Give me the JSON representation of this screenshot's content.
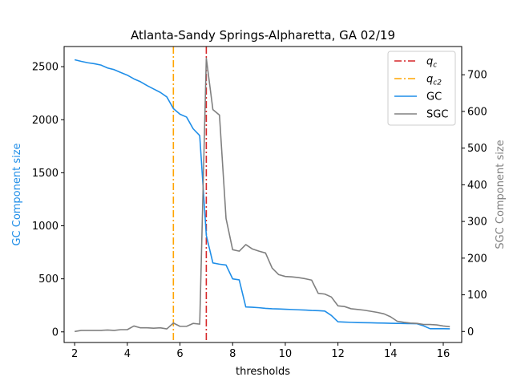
{
  "chart_data": {
    "type": "line",
    "title": "Atlanta-Sandy Springs-Alpharetta, GA 02/19",
    "xlabel": "thresholds",
    "ylabel_left": "GC Component size",
    "ylabel_right": "SGC Component size",
    "xlim": [
      1.6,
      16.7
    ],
    "ylim_left": [
      -100,
      2690
    ],
    "ylim_right": [
      -30,
      777
    ],
    "xticks": [
      2,
      4,
      6,
      8,
      10,
      12,
      14,
      16
    ],
    "yticks_left": [
      0,
      500,
      1000,
      1500,
      2000,
      2500
    ],
    "yticks_right": [
      0,
      100,
      200,
      300,
      400,
      500,
      600,
      700
    ],
    "grid": false,
    "legend_position": "top-right",
    "vlines": [
      {
        "name": "q_c",
        "label_main": "q",
        "label_sub": "c",
        "x": 7.0,
        "color": "#d62728",
        "style": "dashdot"
      },
      {
        "name": "q_c2",
        "label_main": "q",
        "label_sub": "c2",
        "x": 5.75,
        "color": "#ffa500",
        "style": "dashdot"
      }
    ],
    "series": [
      {
        "name": "GC",
        "axis": "left",
        "color": "#1f8ee8",
        "x": [
          2.0,
          2.25,
          2.5,
          2.75,
          3.0,
          3.25,
          3.5,
          3.75,
          4.0,
          4.25,
          4.5,
          4.75,
          5.0,
          5.25,
          5.5,
          5.75,
          6.0,
          6.25,
          6.5,
          6.75,
          7.0,
          7.25,
          7.5,
          7.75,
          8.0,
          8.25,
          8.5,
          8.75,
          9.0,
          9.25,
          9.5,
          9.75,
          10.0,
          10.25,
          10.5,
          10.75,
          11.0,
          11.25,
          11.5,
          11.75,
          12.0,
          12.25,
          12.5,
          12.75,
          13.0,
          13.25,
          13.5,
          13.75,
          14.0,
          14.25,
          14.5,
          14.75,
          15.0,
          15.25,
          15.5,
          15.75,
          16.0,
          16.25
        ],
        "values": [
          2565,
          2550,
          2537,
          2528,
          2515,
          2488,
          2472,
          2445,
          2420,
          2385,
          2358,
          2322,
          2290,
          2258,
          2215,
          2105,
          2052,
          2025,
          1915,
          1850,
          910,
          650,
          638,
          630,
          500,
          490,
          235,
          232,
          228,
          222,
          218,
          216,
          213,
          211,
          208,
          206,
          202,
          200,
          196,
          155,
          95,
          92,
          90,
          88,
          87,
          86,
          84,
          83,
          81,
          80,
          79,
          78,
          77,
          57,
          30,
          30,
          30,
          29
        ]
      },
      {
        "name": "SGC",
        "axis": "right",
        "color": "#808080",
        "x": [
          2.0,
          2.25,
          2.5,
          2.75,
          3.0,
          3.25,
          3.5,
          3.75,
          4.0,
          4.25,
          4.5,
          4.75,
          5.0,
          5.25,
          5.5,
          5.75,
          6.0,
          6.25,
          6.5,
          6.75,
          7.0,
          7.25,
          7.5,
          7.75,
          8.0,
          8.25,
          8.5,
          8.75,
          9.0,
          9.25,
          9.5,
          9.75,
          10.0,
          10.25,
          10.5,
          10.75,
          11.0,
          11.25,
          11.5,
          11.75,
          12.0,
          12.25,
          12.5,
          12.75,
          13.0,
          13.25,
          13.5,
          13.75,
          14.0,
          14.25,
          14.5,
          14.75,
          15.0,
          15.25,
          15.5,
          15.75,
          16.0,
          16.25
        ],
        "values": [
          0,
          3,
          3,
          3,
          3,
          4,
          3,
          5,
          5,
          15,
          10,
          10,
          9,
          10,
          7,
          23,
          14,
          14,
          22,
          20,
          745,
          605,
          590,
          308,
          223,
          219,
          237,
          225,
          219,
          214,
          173,
          155,
          150,
          149,
          147,
          144,
          140,
          104,
          102,
          94,
          70,
          68,
          62,
          60,
          58,
          55,
          52,
          48,
          40,
          28,
          25,
          23,
          22,
          19,
          19,
          18,
          15,
          13
        ]
      }
    ]
  }
}
